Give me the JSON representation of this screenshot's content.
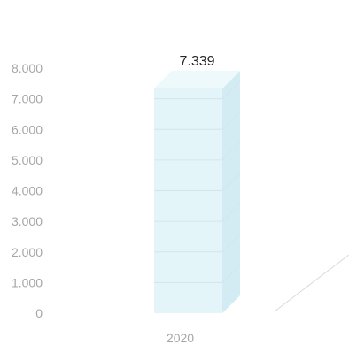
{
  "chart_data": {
    "type": "bar",
    "style": "3d-column",
    "categories": [
      "2020"
    ],
    "values": [
      7339
    ],
    "data_labels": [
      "7.339"
    ],
    "y_tick_labels": [
      "0",
      "1.000",
      "2.000",
      "3.000",
      "4.000",
      "5.000",
      "6.000",
      "7.000",
      "8.000"
    ],
    "ylim": [
      0,
      8000
    ],
    "grid": true,
    "legend": "none",
    "title": "",
    "xlabel": "",
    "ylabel": "",
    "colors": {
      "bar_front": "#e4f5f9",
      "bar_side": "#d3ecf3",
      "bar_top": "#eef9fb",
      "tick_text": "#a6a6a6",
      "label_text": "#262626",
      "grid": "#d2e6ea",
      "floor_line": "#d9d9d9"
    }
  }
}
